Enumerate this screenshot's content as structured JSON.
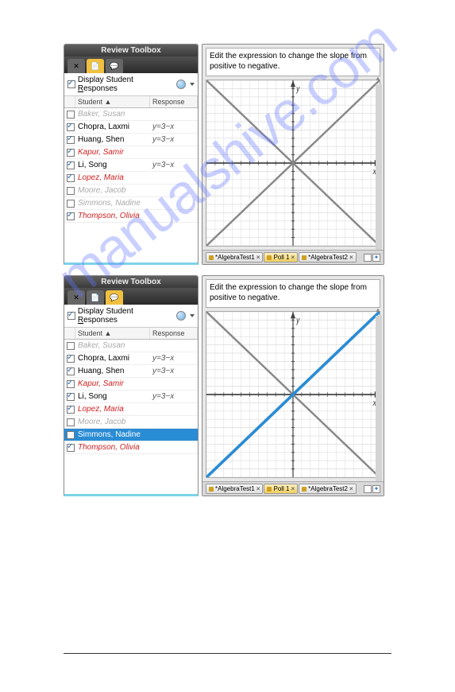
{
  "watermark": "manualshive.com",
  "toolbox": {
    "title": "Review Toolbox",
    "display_responses_label": "Display Student Responses",
    "col_student": "Student ▲",
    "col_response": "Response"
  },
  "panel1": {
    "rows": [
      {
        "checked": false,
        "name": "Baker, Susan",
        "class": "name-disabled",
        "resp": ""
      },
      {
        "checked": true,
        "name": "Chopra, Laxmi",
        "class": "name-enabled",
        "resp": "y=3−x"
      },
      {
        "checked": true,
        "name": "Huang, Shen",
        "class": "name-enabled",
        "resp": "y=3−x"
      },
      {
        "checked": true,
        "name": "Kapur, Samir",
        "class": "name-correct",
        "resp": ""
      },
      {
        "checked": true,
        "name": "Li, Song",
        "class": "name-enabled",
        "resp": "y=3−x"
      },
      {
        "checked": true,
        "name": "Lopez, Maria",
        "class": "name-correct",
        "resp": ""
      },
      {
        "checked": false,
        "name": "Moore, Jacob",
        "class": "name-disabled",
        "resp": ""
      },
      {
        "checked": false,
        "name": "Simmons, Nadine",
        "class": "name-disabled",
        "resp": ""
      },
      {
        "checked": true,
        "name": "Thompson, Olivia",
        "class": "name-correct",
        "resp": ""
      }
    ],
    "tab3_active": false,
    "graph": {
      "lines": [
        {
          "color": "#888888",
          "width": 2,
          "dash": "",
          "x1": -10,
          "y1": -10,
          "x2": 10,
          "y2": 10
        },
        {
          "color": "#888888",
          "width": 2,
          "dash": "",
          "x1": -10,
          "y1": 10,
          "x2": 10,
          "y2": -10
        }
      ]
    }
  },
  "panel2": {
    "rows": [
      {
        "checked": false,
        "name": "Baker, Susan",
        "class": "name-disabled",
        "resp": "",
        "sel": false
      },
      {
        "checked": true,
        "name": "Chopra, Laxmi",
        "class": "name-enabled",
        "resp": "y=3−x",
        "sel": false
      },
      {
        "checked": true,
        "name": "Huang, Shen",
        "class": "name-enabled",
        "resp": "y=3−x",
        "sel": false
      },
      {
        "checked": true,
        "name": "Kapur, Samir",
        "class": "name-correct",
        "resp": "",
        "sel": false
      },
      {
        "checked": true,
        "name": "Li, Song",
        "class": "name-enabled",
        "resp": "y=3−x",
        "sel": false
      },
      {
        "checked": true,
        "name": "Lopez, Maria",
        "class": "name-correct",
        "resp": "",
        "sel": false
      },
      {
        "checked": false,
        "name": "Moore, Jacob",
        "class": "name-disabled",
        "resp": "",
        "sel": false
      },
      {
        "checked": false,
        "name": "Simmons, Nadine",
        "class": "name-enabled",
        "resp": "",
        "sel": true
      },
      {
        "checked": true,
        "name": "Thompson, Olivia",
        "class": "name-correct",
        "resp": "",
        "sel": false
      }
    ],
    "tab3_active": true,
    "graph": {
      "lines": [
        {
          "color": "#888888",
          "width": 2,
          "dash": "",
          "x1": -10,
          "y1": -10,
          "x2": 10,
          "y2": 10
        },
        {
          "color": "#888888",
          "width": 2,
          "dash": "",
          "x1": -10,
          "y1": 10,
          "x2": 10,
          "y2": -10
        },
        {
          "color": "#2a8cd4",
          "width": 3,
          "dash": "",
          "x1": -10,
          "y1": -10,
          "x2": 10,
          "y2": 10
        }
      ]
    }
  },
  "prompt_text": "Edit the expression to change the slope from positive to negative.",
  "tabs": [
    {
      "label": "*AlgebraTest1",
      "icon": "#d0a020"
    },
    {
      "label": "Poll 1",
      "icon": "#d0a020"
    },
    {
      "label": "*AlgebraTest2",
      "icon": "#d0a020"
    }
  ],
  "graph_style": {
    "bg": "#ffffff",
    "grid_color": "#dcdcdc",
    "axis_color": "#444444",
    "tick_color": "#444444",
    "xlim": [
      -10,
      10
    ],
    "ylim": [
      -10,
      10
    ],
    "step": 1,
    "xlabel": "x",
    "ylabel": "y"
  }
}
